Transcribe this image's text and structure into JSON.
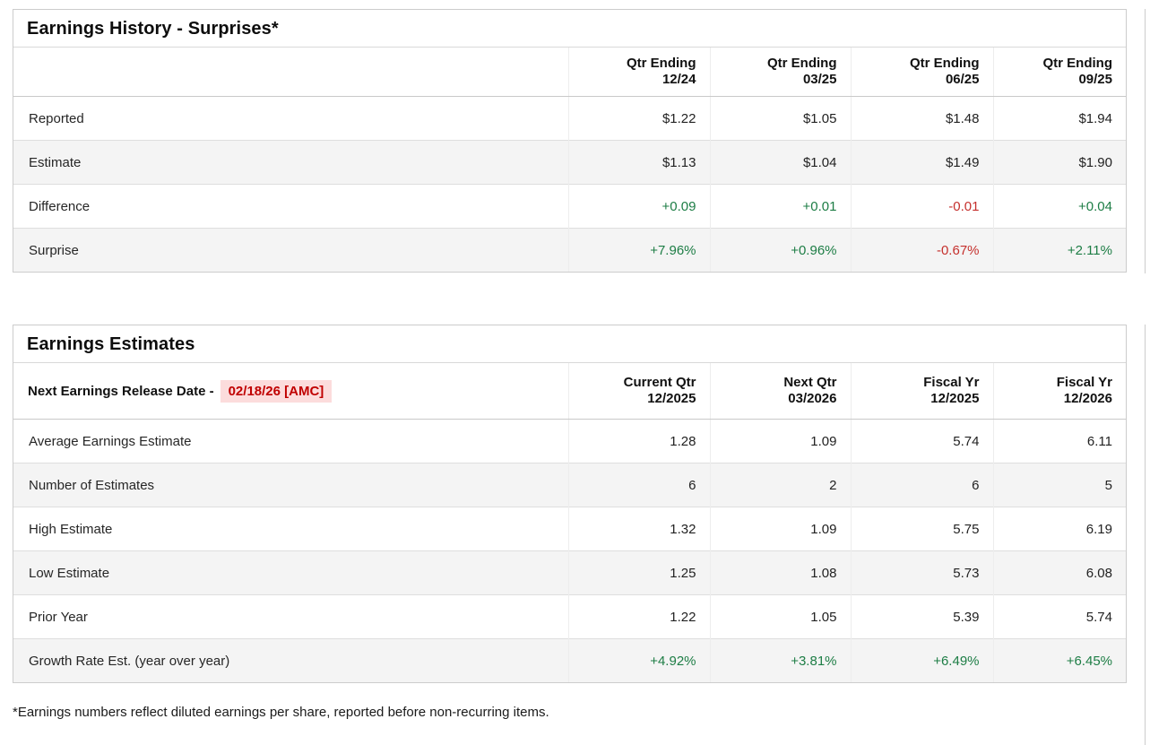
{
  "colors": {
    "positive": "#1d7d45",
    "negative": "#c5302d",
    "highlight_bg": "#fcdcdc",
    "highlight_text": "#c00000"
  },
  "surprises": {
    "title": "Earnings History - Surprises*",
    "columns": [
      {
        "line1": "Qtr Ending",
        "line2": "12/24"
      },
      {
        "line1": "Qtr Ending",
        "line2": "03/25"
      },
      {
        "line1": "Qtr Ending",
        "line2": "06/25"
      },
      {
        "line1": "Qtr Ending",
        "line2": "09/25"
      }
    ],
    "rows": [
      {
        "label": "Reported",
        "values": [
          "$1.22",
          "$1.05",
          "$1.48",
          "$1.94"
        ]
      },
      {
        "label": "Estimate",
        "values": [
          "$1.13",
          "$1.04",
          "$1.49",
          "$1.90"
        ]
      },
      {
        "label": "Difference",
        "values": [
          "+0.09",
          "+0.01",
          "-0.01",
          "+0.04"
        ]
      },
      {
        "label": "Surprise",
        "values": [
          "+7.96%",
          "+0.96%",
          "-0.67%",
          "+2.11%"
        ]
      }
    ]
  },
  "estimates": {
    "title": "Earnings Estimates",
    "release_label": "Next Earnings Release Date -",
    "release_date": "02/18/26 [AMC]",
    "columns": [
      {
        "line1": "Current Qtr",
        "line2": "12/2025"
      },
      {
        "line1": "Next Qtr",
        "line2": "03/2026"
      },
      {
        "line1": "Fiscal Yr",
        "line2": "12/2025"
      },
      {
        "line1": "Fiscal Yr",
        "line2": "12/2026"
      }
    ],
    "rows": [
      {
        "label": "Average Earnings Estimate",
        "values": [
          "1.28",
          "1.09",
          "5.74",
          "6.11"
        ]
      },
      {
        "label": "Number of Estimates",
        "values": [
          "6",
          "2",
          "6",
          "5"
        ]
      },
      {
        "label": "High Estimate",
        "values": [
          "1.32",
          "1.09",
          "5.75",
          "6.19"
        ]
      },
      {
        "label": "Low Estimate",
        "values": [
          "1.25",
          "1.08",
          "5.73",
          "6.08"
        ]
      },
      {
        "label": "Prior Year",
        "values": [
          "1.22",
          "1.05",
          "5.39",
          "5.74"
        ]
      },
      {
        "label": "Growth Rate Est. (year over year)",
        "values": [
          "+4.92%",
          "+3.81%",
          "+6.49%",
          "+6.45%"
        ]
      }
    ]
  },
  "footnote": "*Earnings numbers reflect diluted earnings per share, reported before non-recurring items."
}
